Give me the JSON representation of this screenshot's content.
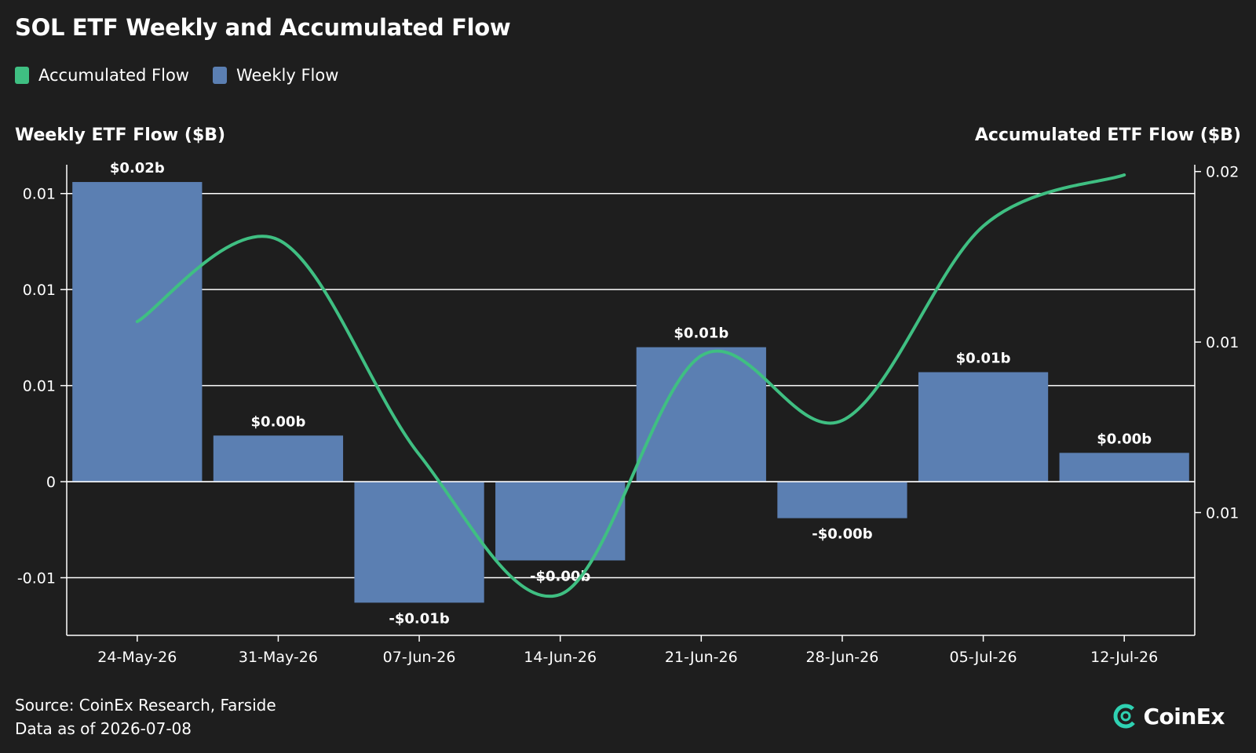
{
  "header": {
    "title": "SOL ETF Weekly and Accumulated Flow"
  },
  "legend": [
    {
      "label": "Accumulated Flow",
      "color": "#3fbf82"
    },
    {
      "label": "Weekly Flow",
      "color": "#5b7fb2"
    }
  ],
  "axes": {
    "y_left_title": "Weekly ETF Flow ($B)",
    "y_right_title": "Accumulated ETF Flow ($B)"
  },
  "footer": {
    "source": "Source: CoinEx Research, Farside",
    "date": "Data as of 2026-07-08"
  },
  "brand": {
    "name": "CoinEx"
  },
  "chart_data": {
    "type": "bar",
    "categories": [
      "24-May-26",
      "31-May-26",
      "07-Jun-26",
      "14-Jun-26",
      "21-Jun-26",
      "28-Jun-26",
      "05-Jul-26",
      "12-Jul-26"
    ],
    "series": [
      {
        "name": "Weekly Flow",
        "type": "bar",
        "axis": "left",
        "color": "#5b7fb2",
        "values": [
          0.0156,
          0.0024,
          -0.0063,
          -0.0041,
          0.007,
          -0.0019,
          0.0057,
          0.0015
        ],
        "labels": [
          "$0.02b",
          "$0.00b",
          "-$0.01b",
          "-$0.00b",
          "$0.01b",
          "-$0.00b",
          "$0.01b",
          "$0.00b"
        ]
      },
      {
        "name": "Accumulated Flow",
        "type": "line",
        "axis": "right",
        "color": "#3fbf82",
        "values": [
          0.0156,
          0.018,
          0.0117,
          0.0076,
          0.0146,
          0.0127,
          0.0184,
          0.0199
        ]
      }
    ],
    "y_left": {
      "range": [
        -0.008,
        0.0165
      ],
      "ticks": [
        -0.005,
        0,
        0.005,
        0.01,
        0.015
      ],
      "tick_labels": [
        "-0.01",
        "0",
        "0.01",
        "0.01",
        "0.01"
      ]
    },
    "y_right": {
      "range": [
        0.0064,
        0.0202
      ],
      "ticks": [
        0.01,
        0.015,
        0.02
      ],
      "tick_labels": [
        "0.01",
        "0.01",
        "0.02"
      ]
    },
    "grid": true,
    "legend_position": "top-left"
  }
}
